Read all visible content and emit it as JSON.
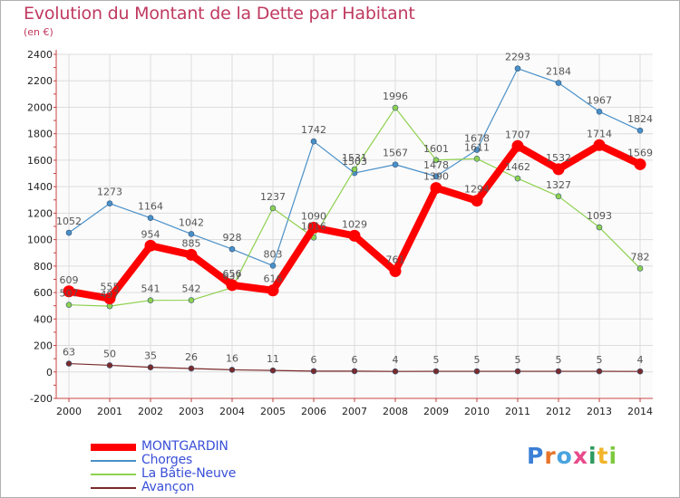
{
  "header": {
    "title": "Evolution du Montant de la Dette par Habitant",
    "unit": "(en €)"
  },
  "logo": {
    "text": "Proxiti",
    "letter_colors": [
      "#3b7fd6",
      "#e8742a",
      "#4aa3df",
      "#e84a8a",
      "#2e9a5f",
      "#f2b52a",
      "#7ec93f"
    ]
  },
  "chart_data": {
    "type": "line",
    "x": [
      "2000",
      "2001",
      "2002",
      "2003",
      "2004",
      "2005",
      "2006",
      "2007",
      "2008",
      "2009",
      "2010",
      "2011",
      "2012",
      "2013",
      "2014"
    ],
    "ylim": [
      -200,
      2400
    ],
    "yticks": [
      -200,
      0,
      200,
      400,
      600,
      800,
      1000,
      1200,
      1400,
      1600,
      1800,
      2000,
      2200,
      2400
    ],
    "grid": true,
    "legend_position": "bottom-left",
    "series": [
      {
        "name": "MONTGARDIN",
        "color": "#ff0000",
        "label_color": "#555555",
        "values": [
          609,
          555,
          954,
          885,
          656,
          616,
          1090,
          1029,
          761,
          1390,
          1294,
          1707,
          1532,
          1714,
          1569
        ],
        "labels": [
          "609",
          "555",
          "954",
          "885",
          "656",
          "616",
          "1090",
          "1029",
          "761",
          "1390",
          "1294",
          "1707",
          "1532",
          "1714",
          "1569"
        ]
      },
      {
        "name": "Chorges",
        "color": "#4a90c8",
        "label_color": "#555555",
        "values": [
          1052,
          1273,
          1164,
          1042,
          928,
          803,
          1742,
          1503,
          1567,
          1478,
          1678,
          2293,
          2184,
          1967,
          1824
        ],
        "labels": [
          "1052",
          "1273",
          "1164",
          "1042",
          "928",
          "803",
          "1742",
          "1503",
          "1567",
          "1478",
          "1678",
          "2293",
          "2184",
          "1967",
          "1824"
        ]
      },
      {
        "name": "La Bâtie-Neuve",
        "color": "#8fd14f",
        "label_color": "#555555",
        "values": [
          507,
          497,
          541,
          542,
          637,
          1237,
          1016,
          1531,
          1996,
          1601,
          1611,
          1462,
          1327,
          1093,
          782
        ],
        "labels": [
          "507",
          "497",
          "541",
          "542",
          "637",
          "1237",
          "1016",
          "1531",
          "1996",
          "1601",
          "1611",
          "1462",
          "1327",
          "1093",
          "782"
        ]
      },
      {
        "name": "Avançon",
        "color": "#7a2a2a",
        "label_color": "#555555",
        "values": [
          63,
          50,
          35,
          26,
          16,
          11,
          6,
          6,
          4,
          5,
          5,
          5,
          5,
          5,
          4
        ],
        "labels": [
          "63",
          "50",
          "35",
          "26",
          "16",
          "11",
          "6",
          "6",
          "4",
          "5",
          "5",
          "5",
          "5",
          "5",
          "4"
        ]
      }
    ]
  }
}
